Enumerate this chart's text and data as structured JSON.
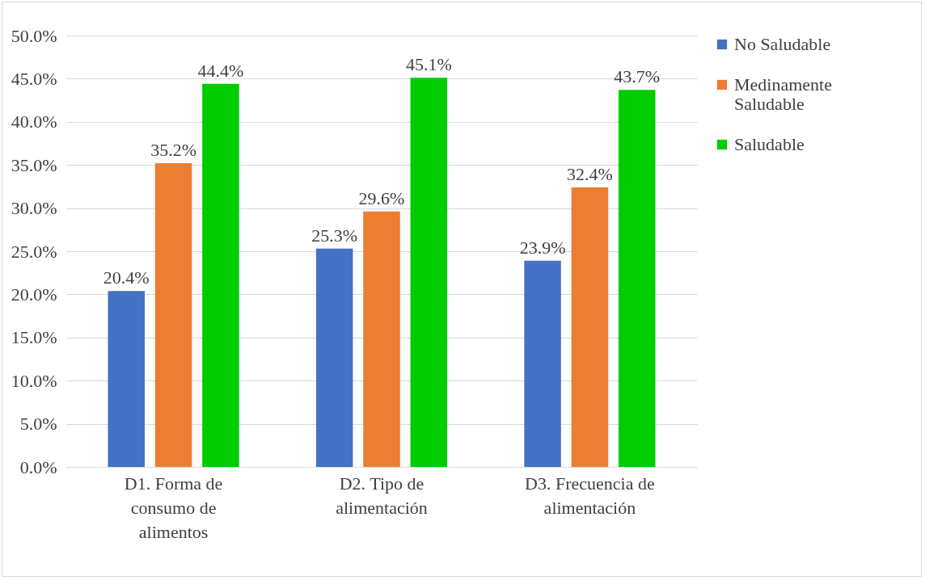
{
  "chart_data": {
    "type": "bar",
    "categories": [
      "D1. Forma de consumo de alimentos",
      "D2. Tipo de alimentación",
      "D3. Frecuencia de alimentación"
    ],
    "series": [
      {
        "name": "No Saludable",
        "color": "#4472c4",
        "values": [
          20.4,
          25.3,
          23.9
        ],
        "value_labels": [
          "20.4%",
          "25.3%",
          "23.9%"
        ]
      },
      {
        "name": "Medinamente Saludable",
        "color": "#ed7d31",
        "values": [
          35.2,
          29.6,
          32.4
        ],
        "value_labels": [
          "35.2%",
          "29.6%",
          "32.4%"
        ]
      },
      {
        "name": "Saludable",
        "color": "#00cc00",
        "values": [
          44.4,
          45.1,
          43.7
        ],
        "value_labels": [
          "44.4%",
          "45.1%",
          "43.7%"
        ]
      }
    ],
    "ylim": [
      0,
      50
    ],
    "yticks": [
      {
        "value": 0,
        "label": "0.0%"
      },
      {
        "value": 5,
        "label": "5.0%"
      },
      {
        "value": 10,
        "label": "10.0%"
      },
      {
        "value": 15,
        "label": "15.0%"
      },
      {
        "value": 20,
        "label": "20.0%"
      },
      {
        "value": 25,
        "label": "25.0%"
      },
      {
        "value": 30,
        "label": "30.0%"
      },
      {
        "value": 35,
        "label": "35.0%"
      },
      {
        "value": 40,
        "label": "40.0%"
      },
      {
        "value": 45,
        "label": "45.0%"
      },
      {
        "value": 50,
        "label": "50.0%"
      }
    ],
    "grid": "y",
    "legend": "right"
  }
}
